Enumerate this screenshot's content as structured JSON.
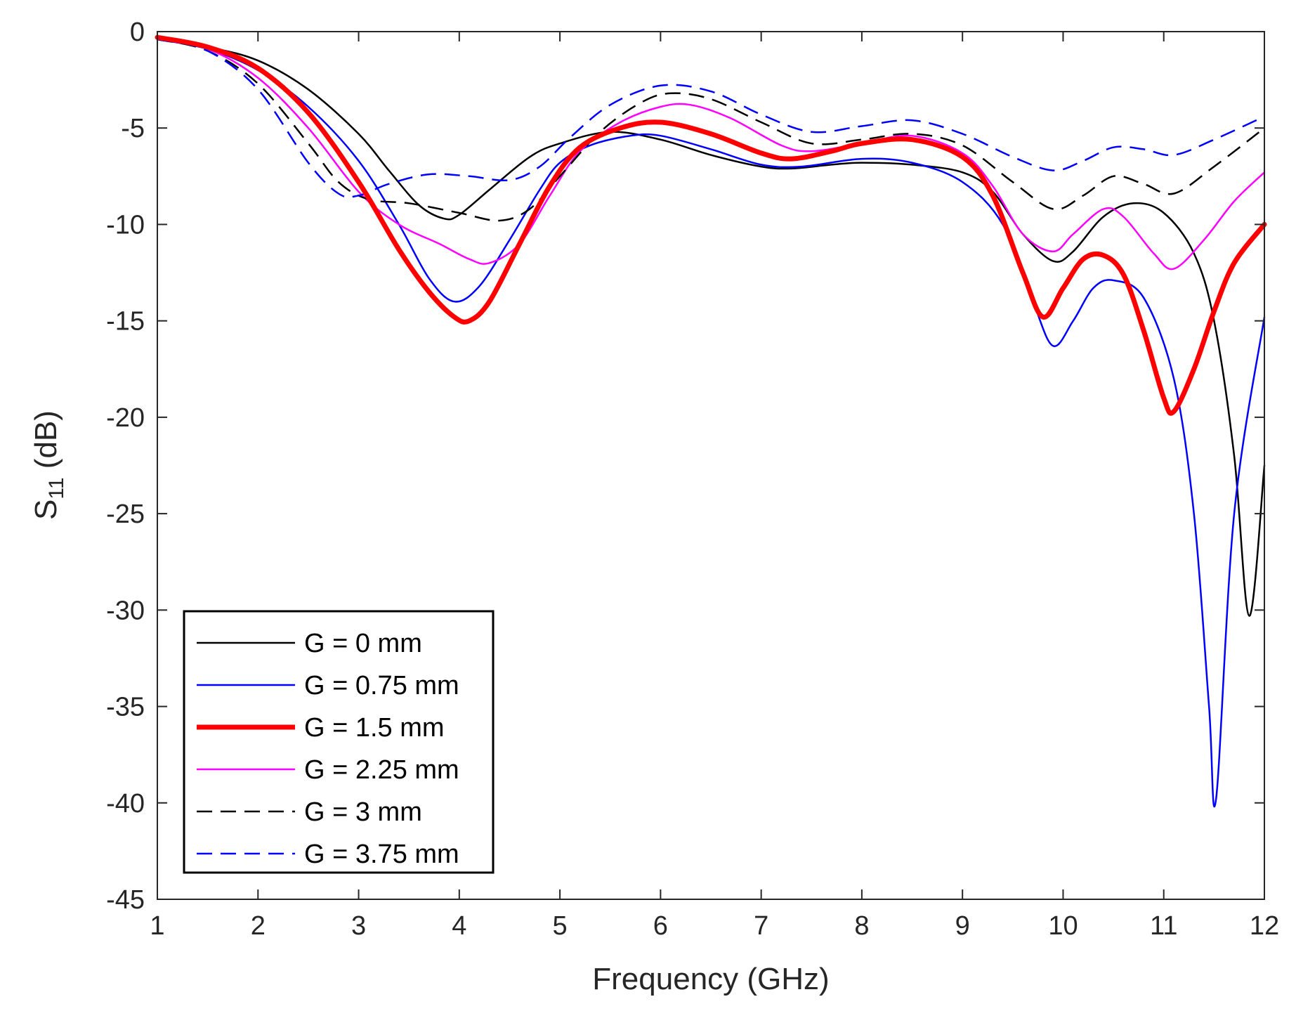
{
  "chart_data": {
    "type": "line",
    "xlabel": "Frequency (GHz)",
    "ylabel_main": "S",
    "ylabel_sub": "11",
    "ylabel_unit": " (dB)",
    "xlim": [
      1,
      12
    ],
    "ylim": [
      -45,
      0
    ],
    "xticks": [
      1,
      2,
      3,
      4,
      5,
      6,
      7,
      8,
      9,
      10,
      11,
      12
    ],
    "yticks": [
      0,
      -5,
      -10,
      -15,
      -20,
      -25,
      -30,
      -35,
      -40,
      -45
    ],
    "legend_position": "bottom-left",
    "series": [
      {
        "name": "G = 0 mm",
        "color": "#000000",
        "style": "solid",
        "weight": "thin",
        "points": [
          [
            1,
            -0.4
          ],
          [
            1.5,
            -0.8
          ],
          [
            2,
            -1.5
          ],
          [
            2.5,
            -3.0
          ],
          [
            3,
            -5.3
          ],
          [
            3.3,
            -7.2
          ],
          [
            3.6,
            -9.0
          ],
          [
            3.85,
            -9.7
          ],
          [
            4,
            -9.5
          ],
          [
            4.3,
            -8.2
          ],
          [
            4.7,
            -6.5
          ],
          [
            5,
            -5.8
          ],
          [
            5.5,
            -5.2
          ],
          [
            6,
            -5.6
          ],
          [
            6.5,
            -6.4
          ],
          [
            7,
            -7.0
          ],
          [
            7.3,
            -7.1
          ],
          [
            7.7,
            -6.9
          ],
          [
            8,
            -6.8
          ],
          [
            8.5,
            -6.9
          ],
          [
            9,
            -7.3
          ],
          [
            9.3,
            -8.3
          ],
          [
            9.6,
            -10.5
          ],
          [
            9.9,
            -11.9
          ],
          [
            10.1,
            -11.4
          ],
          [
            10.4,
            -9.6
          ],
          [
            10.7,
            -8.9
          ],
          [
            11,
            -9.4
          ],
          [
            11.3,
            -11.5
          ],
          [
            11.5,
            -15.0
          ],
          [
            11.7,
            -22.0
          ],
          [
            11.85,
            -30.3
          ],
          [
            12,
            -22.5
          ]
        ]
      },
      {
        "name": "G = 0.75 mm",
        "color": "#0000ff",
        "style": "solid",
        "weight": "thin",
        "points": [
          [
            1,
            -0.4
          ],
          [
            1.5,
            -0.9
          ],
          [
            2,
            -2.0
          ],
          [
            2.5,
            -3.9
          ],
          [
            3,
            -6.7
          ],
          [
            3.4,
            -10.0
          ],
          [
            3.7,
            -12.8
          ],
          [
            3.95,
            -14.0
          ],
          [
            4.2,
            -13.2
          ],
          [
            4.5,
            -10.8
          ],
          [
            4.8,
            -8.2
          ],
          [
            5,
            -6.8
          ],
          [
            5.3,
            -5.9
          ],
          [
            5.7,
            -5.4
          ],
          [
            6,
            -5.4
          ],
          [
            6.5,
            -6.1
          ],
          [
            7,
            -6.9
          ],
          [
            7.4,
            -7.0
          ],
          [
            8,
            -6.6
          ],
          [
            8.5,
            -6.8
          ],
          [
            9,
            -7.8
          ],
          [
            9.4,
            -10.0
          ],
          [
            9.7,
            -14.0
          ],
          [
            9.9,
            -16.3
          ],
          [
            10.1,
            -15.0
          ],
          [
            10.3,
            -13.3
          ],
          [
            10.5,
            -12.9
          ],
          [
            10.8,
            -13.8
          ],
          [
            11.1,
            -18.0
          ],
          [
            11.3,
            -25.0
          ],
          [
            11.45,
            -35.0
          ],
          [
            11.52,
            -39.8
          ],
          [
            11.7,
            -25.0
          ],
          [
            12,
            -14.8
          ]
        ]
      },
      {
        "name": "G = 1.5 mm",
        "color": "#ff0000",
        "style": "solid",
        "weight": "thick",
        "points": [
          [
            1,
            -0.3
          ],
          [
            1.5,
            -0.8
          ],
          [
            2,
            -1.9
          ],
          [
            2.5,
            -4.2
          ],
          [
            3,
            -7.8
          ],
          [
            3.4,
            -11.3
          ],
          [
            3.7,
            -13.5
          ],
          [
            3.95,
            -14.8
          ],
          [
            4.1,
            -15.0
          ],
          [
            4.3,
            -14.0
          ],
          [
            4.6,
            -11.0
          ],
          [
            4.9,
            -8.0
          ],
          [
            5.2,
            -6.0
          ],
          [
            5.6,
            -5.0
          ],
          [
            6,
            -4.7
          ],
          [
            6.5,
            -5.3
          ],
          [
            7,
            -6.3
          ],
          [
            7.3,
            -6.6
          ],
          [
            7.7,
            -6.2
          ],
          [
            8,
            -5.8
          ],
          [
            8.5,
            -5.6
          ],
          [
            9,
            -6.5
          ],
          [
            9.3,
            -8.5
          ],
          [
            9.6,
            -12.5
          ],
          [
            9.8,
            -14.8
          ],
          [
            10,
            -13.3
          ],
          [
            10.2,
            -11.8
          ],
          [
            10.4,
            -11.6
          ],
          [
            10.6,
            -12.6
          ],
          [
            10.8,
            -15.5
          ],
          [
            11,
            -19.0
          ],
          [
            11.1,
            -19.7
          ],
          [
            11.3,
            -17.5
          ],
          [
            11.5,
            -14.5
          ],
          [
            11.7,
            -12.0
          ],
          [
            12,
            -10.0
          ]
        ]
      },
      {
        "name": "G = 2.25 mm",
        "color": "#ff00ff",
        "style": "solid",
        "weight": "thin",
        "points": [
          [
            1,
            -0.4
          ],
          [
            1.5,
            -0.9
          ],
          [
            2,
            -2.4
          ],
          [
            2.5,
            -5.0
          ],
          [
            3,
            -8.3
          ],
          [
            3.4,
            -10.0
          ],
          [
            3.8,
            -11.0
          ],
          [
            4.1,
            -11.8
          ],
          [
            4.3,
            -12.0
          ],
          [
            4.6,
            -11.0
          ],
          [
            4.9,
            -8.5
          ],
          [
            5.2,
            -6.2
          ],
          [
            5.6,
            -4.7
          ],
          [
            6,
            -3.9
          ],
          [
            6.3,
            -3.8
          ],
          [
            6.7,
            -4.5
          ],
          [
            7.2,
            -5.9
          ],
          [
            7.5,
            -6.2
          ],
          [
            8,
            -5.8
          ],
          [
            8.5,
            -5.4
          ],
          [
            9,
            -6.3
          ],
          [
            9.3,
            -8.0
          ],
          [
            9.6,
            -10.5
          ],
          [
            9.9,
            -11.4
          ],
          [
            10.1,
            -10.5
          ],
          [
            10.4,
            -9.2
          ],
          [
            10.6,
            -9.6
          ],
          [
            10.9,
            -11.5
          ],
          [
            11.1,
            -12.3
          ],
          [
            11.4,
            -10.8
          ],
          [
            11.7,
            -8.8
          ],
          [
            12,
            -7.3
          ]
        ]
      },
      {
        "name": "G = 3 mm",
        "color": "#000000",
        "style": "dashed",
        "weight": "thin",
        "points": [
          [
            1,
            -0.4
          ],
          [
            1.5,
            -1.0
          ],
          [
            2,
            -2.7
          ],
          [
            2.5,
            -5.8
          ],
          [
            2.8,
            -7.8
          ],
          [
            3.1,
            -8.7
          ],
          [
            3.5,
            -8.9
          ],
          [
            4,
            -9.4
          ],
          [
            4.4,
            -9.8
          ],
          [
            4.7,
            -9.2
          ],
          [
            5,
            -7.5
          ],
          [
            5.4,
            -5.2
          ],
          [
            5.8,
            -3.7
          ],
          [
            6.1,
            -3.2
          ],
          [
            6.5,
            -3.5
          ],
          [
            7,
            -4.7
          ],
          [
            7.5,
            -5.8
          ],
          [
            8,
            -5.6
          ],
          [
            8.5,
            -5.3
          ],
          [
            9,
            -5.9
          ],
          [
            9.5,
            -7.8
          ],
          [
            9.9,
            -9.2
          ],
          [
            10.2,
            -8.5
          ],
          [
            10.5,
            -7.5
          ],
          [
            10.8,
            -7.9
          ],
          [
            11.1,
            -8.4
          ],
          [
            11.5,
            -7.0
          ],
          [
            12,
            -5.0
          ]
        ]
      },
      {
        "name": "G = 3.75 mm",
        "color": "#0000ff",
        "style": "dashed",
        "weight": "thin",
        "points": [
          [
            1,
            -0.4
          ],
          [
            1.5,
            -1.0
          ],
          [
            2,
            -3.0
          ],
          [
            2.5,
            -6.8
          ],
          [
            2.8,
            -8.4
          ],
          [
            3,
            -8.5
          ],
          [
            3.3,
            -7.9
          ],
          [
            3.7,
            -7.4
          ],
          [
            4.1,
            -7.5
          ],
          [
            4.5,
            -7.7
          ],
          [
            4.8,
            -7.0
          ],
          [
            5.1,
            -5.5
          ],
          [
            5.5,
            -3.8
          ],
          [
            6,
            -2.8
          ],
          [
            6.5,
            -3.1
          ],
          [
            7,
            -4.3
          ],
          [
            7.5,
            -5.2
          ],
          [
            8,
            -4.9
          ],
          [
            8.5,
            -4.6
          ],
          [
            9,
            -5.3
          ],
          [
            9.5,
            -6.5
          ],
          [
            9.9,
            -7.2
          ],
          [
            10.2,
            -6.7
          ],
          [
            10.5,
            -6.0
          ],
          [
            10.8,
            -6.1
          ],
          [
            11.1,
            -6.4
          ],
          [
            11.5,
            -5.6
          ],
          [
            12,
            -4.4
          ]
        ]
      }
    ]
  }
}
